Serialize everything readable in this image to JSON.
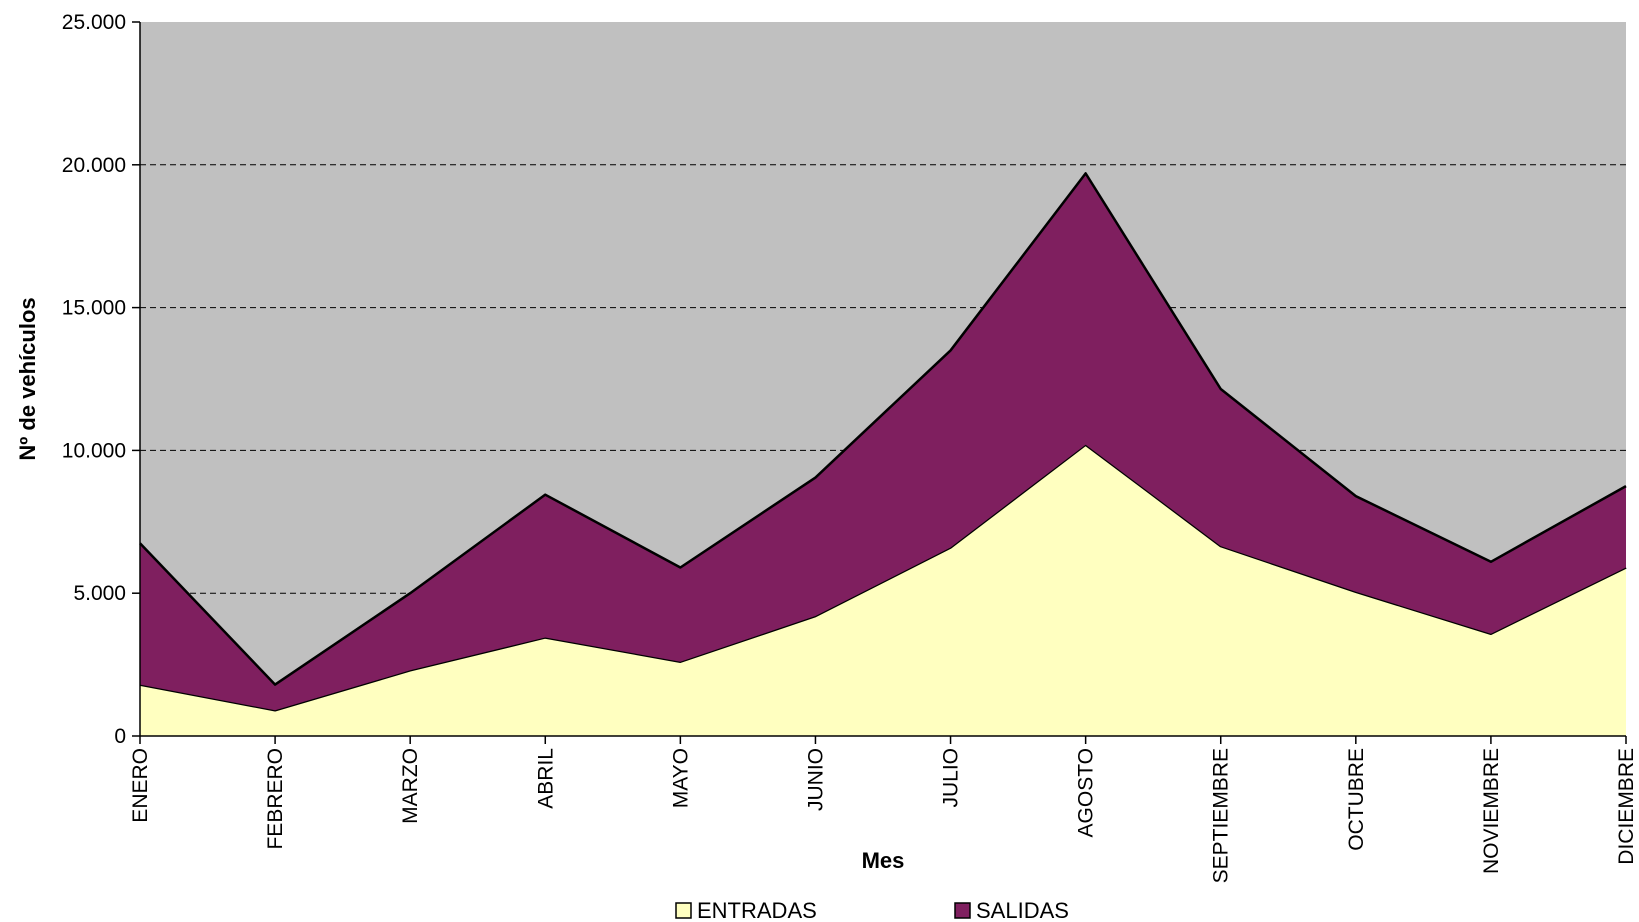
{
  "chart_data": {
    "type": "area",
    "stacked": true,
    "categories": [
      "ENERO",
      "FEBRERO",
      "MARZO",
      "ABRIL",
      "MAYO",
      "JUNIO",
      "JULIO",
      "AGOSTO",
      "SEPTIEMBRE",
      "OCTUBRE",
      "NOVIEMBRE",
      "DICIEMBRE"
    ],
    "series": [
      {
        "name": "ENTRADAS",
        "color": "#FFFFC0",
        "values": [
          1800,
          900,
          2300,
          3450,
          2600,
          4200,
          6600,
          10200,
          6650,
          5050,
          3580,
          5900
        ]
      },
      {
        "name": "SALIDAS",
        "color": "#7F1F5F",
        "values": [
          4950,
          900,
          2700,
          5000,
          3300,
          4850,
          6900,
          9500,
          5500,
          3350,
          2520,
          2850
        ]
      }
    ],
    "xlabel": "Mes",
    "ylabel": "Nº de vehículos",
    "ylim": [
      0,
      25000
    ],
    "yticks": [
      0,
      5000,
      10000,
      15000,
      20000,
      25000
    ],
    "ytick_labels": [
      "0",
      "5.000",
      "10.000",
      "15.000",
      "20.000",
      "25.000"
    ],
    "plot_background": "#C0C0C0",
    "grid": "horizontal dashed",
    "legend_position": "bottom"
  }
}
